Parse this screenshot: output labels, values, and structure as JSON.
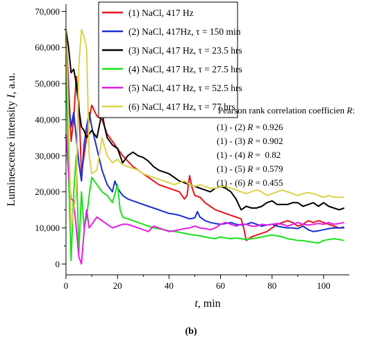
{
  "chart_data": {
    "type": "line",
    "xlabel": "t, min",
    "ylabel": "Luminescence intensity I, a.u.",
    "xlim": [
      0,
      110
    ],
    "ylim": [
      -3000,
      72000
    ],
    "x_ticks": [
      0,
      20,
      40,
      60,
      80,
      100
    ],
    "y_ticks": [
      0,
      10000,
      20000,
      30000,
      40000,
      50000,
      60000,
      70000
    ],
    "y_tick_labels": [
      "0",
      "10,000",
      "20,000",
      "30,000",
      "40,000",
      "50,000",
      "60,000",
      "70,000"
    ],
    "grid": false,
    "legend_position": "top-left",
    "series": [
      {
        "name": "(1) NaCl, 417 Hz",
        "color": "#e8141b",
        "x": [
          0,
          1,
          2,
          3,
          4,
          5,
          6,
          7,
          8,
          9,
          10,
          12,
          14,
          16,
          18,
          20,
          22,
          24,
          26,
          28,
          30,
          32,
          34,
          36,
          38,
          40,
          42,
          44,
          46,
          47,
          48,
          49,
          50,
          52,
          54,
          56,
          58,
          60,
          62,
          64,
          66,
          68,
          69,
          70,
          72,
          74,
          76,
          78,
          80,
          82,
          84,
          86,
          88,
          90,
          92,
          94,
          96,
          98,
          100,
          102,
          104,
          106,
          108
        ],
        "y": [
          64000,
          50000,
          34000,
          40000,
          52000,
          45000,
          25000,
          30000,
          35000,
          40000,
          44000,
          41000,
          40000,
          36000,
          34000,
          32000,
          30000,
          28500,
          27000,
          26000,
          25000,
          24000,
          23000,
          22000,
          21500,
          21000,
          20500,
          20000,
          18000,
          19000,
          24500,
          21000,
          19000,
          18500,
          17000,
          16000,
          15000,
          14500,
          14000,
          13500,
          13000,
          12500,
          10000,
          6500,
          7500,
          8000,
          8500,
          9000,
          10000,
          11000,
          11500,
          12000,
          11500,
          10500,
          11000,
          12000,
          11500,
          12000,
          11500,
          11000,
          10500,
          10000,
          10000
        ]
      },
      {
        "name": "(2) NaCl, 417Hz, τ = 150 min",
        "color": "#1a2ed1",
        "x": [
          0,
          1,
          2,
          3,
          4,
          5,
          6,
          7,
          8,
          9,
          10,
          12,
          14,
          16,
          18,
          19,
          20,
          22,
          24,
          26,
          28,
          30,
          32,
          34,
          36,
          38,
          40,
          42,
          44,
          46,
          48,
          50,
          51,
          52,
          54,
          56,
          58,
          60,
          62,
          64,
          66,
          68,
          70,
          72,
          74,
          76,
          78,
          80,
          82,
          84,
          86,
          88,
          90,
          92,
          94,
          96,
          98,
          100,
          102,
          104,
          106,
          108
        ],
        "y": [
          63000,
          45000,
          38000,
          42000,
          35000,
          28000,
          23000,
          33000,
          38000,
          42000,
          38000,
          32000,
          26000,
          22000,
          20000,
          23000,
          21000,
          19000,
          18000,
          17500,
          17000,
          16500,
          16000,
          15500,
          15000,
          14500,
          14000,
          13800,
          13500,
          13000,
          12500,
          12800,
          14500,
          13000,
          12000,
          11500,
          11200,
          11000,
          11200,
          11500,
          11000,
          10800,
          11000,
          11500,
          11000,
          10500,
          10800,
          11000,
          10500,
          10200,
          10000,
          10000,
          9800,
          10500,
          9500,
          9000,
          9200,
          9500,
          9800,
          10000,
          10000,
          10200
        ]
      },
      {
        "name": "(3) NaCl, 417 Hz, τ = 23.5 hrs",
        "color": "#000000",
        "x": [
          0,
          1,
          2,
          3,
          4,
          5,
          6,
          7,
          8,
          9,
          10,
          12,
          14,
          15,
          16,
          18,
          20,
          22,
          24,
          26,
          28,
          30,
          32,
          34,
          36,
          38,
          40,
          42,
          44,
          46,
          48,
          50,
          52,
          54,
          56,
          58,
          60,
          62,
          64,
          66,
          68,
          70,
          72,
          74,
          76,
          78,
          80,
          82,
          84,
          86,
          88,
          90,
          92,
          94,
          96,
          98,
          100,
          102,
          104,
          106,
          108
        ],
        "y": [
          65000,
          60000,
          53000,
          54000,
          50000,
          43000,
          38000,
          37000,
          35000,
          36000,
          37000,
          35000,
          42000,
          38000,
          35000,
          33000,
          32000,
          28000,
          30000,
          31000,
          30000,
          29500,
          28500,
          27000,
          26000,
          25500,
          25000,
          24000,
          23000,
          22500,
          22000,
          21500,
          21000,
          20500,
          20000,
          21000,
          21500,
          21000,
          20000,
          18000,
          15000,
          16000,
          15500,
          15500,
          16000,
          17000,
          17500,
          16500,
          16500,
          16500,
          17000,
          17000,
          16000,
          16500,
          17000,
          16000,
          17000,
          16000,
          15500,
          15000,
          15500
        ]
      },
      {
        "name": "(4) NaCl, 417 Hz, τ = 27.5 hrs",
        "color": "#1be01b",
        "x": [
          0,
          1,
          2,
          3,
          4,
          5,
          6,
          7,
          8,
          9,
          10,
          12,
          14,
          16,
          18,
          20,
          21,
          22,
          24,
          26,
          28,
          30,
          32,
          34,
          36,
          38,
          40,
          42,
          44,
          46,
          48,
          50,
          52,
          54,
          56,
          58,
          60,
          62,
          64,
          66,
          68,
          70,
          72,
          74,
          76,
          78,
          80,
          82,
          84,
          86,
          88,
          90,
          92,
          94,
          96,
          98,
          100,
          102,
          104,
          106,
          108
        ],
        "y": [
          58000,
          25000,
          1000,
          20000,
          30000,
          3000,
          20000,
          10000,
          13000,
          19000,
          24000,
          22000,
          20000,
          19000,
          17000,
          22000,
          15000,
          13000,
          12500,
          12000,
          11500,
          11000,
          10500,
          10000,
          9800,
          9500,
          9200,
          9000,
          8800,
          8500,
          8200,
          8000,
          7800,
          7500,
          7200,
          7000,
          7500,
          7200,
          7000,
          7200,
          7000,
          6800,
          7000,
          7200,
          7500,
          7800,
          8000,
          7800,
          7500,
          7000,
          6800,
          6500,
          6500,
          6200,
          6000,
          5800,
          6500,
          6800,
          7000,
          6800,
          6500
        ]
      },
      {
        "name": "(5) NaCl, 417 Hz, τ = 52.5 hrs",
        "color": "#e51ee5",
        "x": [
          0,
          1,
          2,
          3,
          4,
          5,
          6,
          7,
          8,
          9,
          10,
          12,
          14,
          16,
          18,
          20,
          22,
          24,
          26,
          28,
          30,
          32,
          34,
          36,
          38,
          40,
          42,
          44,
          46,
          48,
          50,
          52,
          54,
          56,
          58,
          60,
          62,
          64,
          66,
          68,
          70,
          72,
          74,
          76,
          78,
          80,
          82,
          84,
          86,
          88,
          90,
          92,
          94,
          96,
          98,
          100,
          102,
          104,
          106,
          108
        ],
        "y": [
          36000,
          25000,
          18000,
          17500,
          10000,
          2000,
          0,
          9000,
          15000,
          10000,
          11000,
          13000,
          12000,
          11000,
          10000,
          10500,
          11000,
          11000,
          10500,
          10000,
          9500,
          9000,
          10500,
          10000,
          9500,
          9000,
          9200,
          9500,
          9800,
          10000,
          10500,
          10000,
          9800,
          9500,
          10000,
          11000,
          11500,
          11000,
          10500,
          11000,
          11000,
          10500,
          10500,
          11000,
          10800,
          11000,
          11200,
          11000,
          10500,
          11000,
          11500,
          11000,
          10800,
          11000,
          11200,
          11000,
          11500,
          11000,
          11200,
          11500
        ]
      },
      {
        "name": "(6) NaCl, 417 Hz, τ = 77 hrs",
        "color": "#dcd24a",
        "x": [
          0,
          1,
          2,
          3,
          4,
          5,
          6,
          7,
          8,
          9,
          10,
          12,
          14,
          16,
          18,
          20,
          22,
          24,
          26,
          28,
          30,
          32,
          34,
          36,
          38,
          40,
          42,
          44,
          46,
          48,
          50,
          52,
          54,
          56,
          58,
          60,
          62,
          64,
          66,
          68,
          70,
          72,
          74,
          76,
          78,
          80,
          82,
          84,
          86,
          88,
          90,
          92,
          94,
          96,
          98,
          100,
          102,
          104,
          106,
          108
        ],
        "y": [
          65000,
          40000,
          10000,
          15000,
          20000,
          55000,
          65000,
          63000,
          60000,
          30000,
          25000,
          26000,
          35000,
          30000,
          28000,
          29000,
          27500,
          27000,
          26500,
          26000,
          25000,
          24500,
          24000,
          23500,
          23000,
          22500,
          22000,
          22500,
          23000,
          22000,
          21500,
          22000,
          21500,
          21000,
          21000,
          21500,
          21500,
          21000,
          20500,
          20000,
          19500,
          20000,
          20500,
          20000,
          19000,
          19500,
          20000,
          20500,
          20000,
          19500,
          19000,
          19500,
          19800,
          19500,
          19000,
          18500,
          19000,
          18500,
          18500,
          18500
        ]
      }
    ],
    "annotations": {
      "heading": "Pearson rank correlation coefficien R:",
      "lines": [
        "(1) - (2) R = 0.926",
        "(1) - (3) R = 0.902",
        "(1) - (4) R =  0.82",
        "(1) - (5) R = 0.579",
        "(1) - (6) R = 0.455"
      ]
    }
  },
  "caption": "(b)"
}
